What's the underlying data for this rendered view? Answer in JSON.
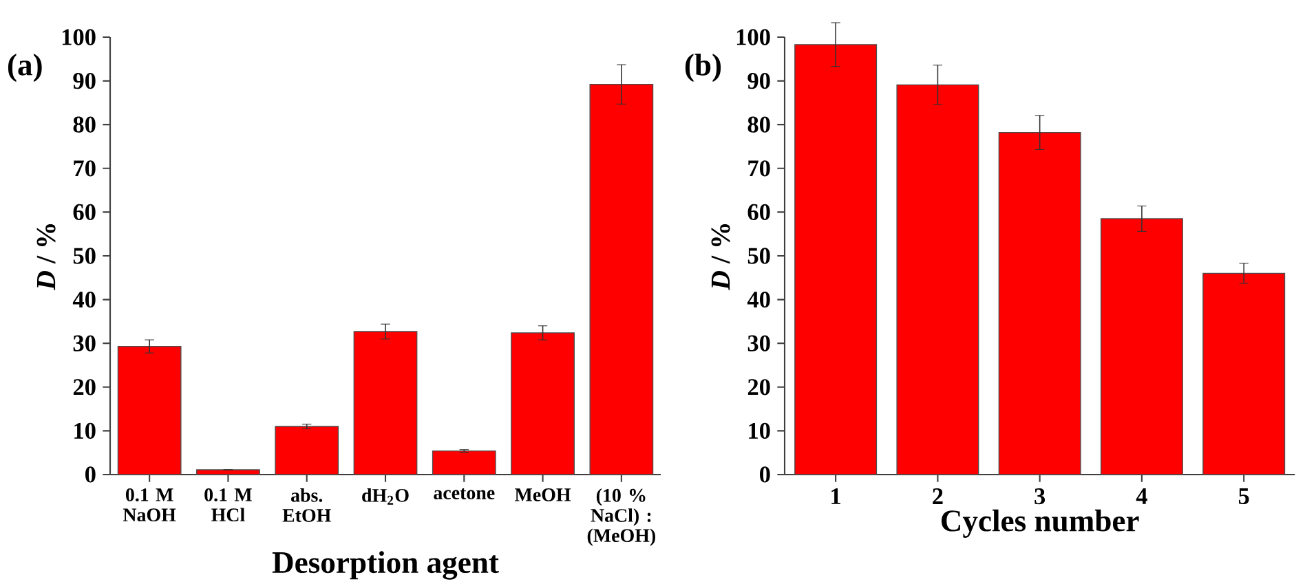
{
  "chart_data": [
    {
      "type": "bar",
      "annotations": [
        "(a)"
      ],
      "xlabel": "Desorption agent",
      "ylabel": "*D* / %",
      "categories": [
        "0.1 M NaOH",
        "0.1 M HCl",
        "abs. EtOH",
        "dH$_{2}$O",
        "acetone",
        "MeOH",
        "(10 % NaCl) : (MeOH)"
      ],
      "values": [
        29.3,
        1.1,
        11.0,
        32.7,
        5.4,
        32.4,
        89.2
      ],
      "errors": [
        1.5,
        null,
        0.5,
        1.7,
        0.3,
        1.6,
        4.5
      ],
      "color": "#ff0000",
      "ylim": [
        0,
        100
      ],
      "yticks": [
        0,
        10,
        20,
        30,
        40,
        50,
        60,
        70,
        80,
        90,
        100
      ]
    },
    {
      "type": "bar",
      "annotations": [
        "(b)"
      ],
      "xlabel": "Cycles number",
      "ylabel": "*D* / %",
      "categories": [
        "1",
        "2",
        "3",
        "4",
        "5"
      ],
      "values": [
        98.3,
        89.1,
        78.2,
        58.5,
        46.0
      ],
      "errors": [
        5.0,
        4.5,
        3.9,
        2.9,
        2.3
      ],
      "color": "#ff0000",
      "ylim": [
        0,
        100
      ],
      "yticks": [
        0,
        10,
        20,
        30,
        40,
        50,
        60,
        70,
        80,
        90,
        100
      ]
    }
  ]
}
